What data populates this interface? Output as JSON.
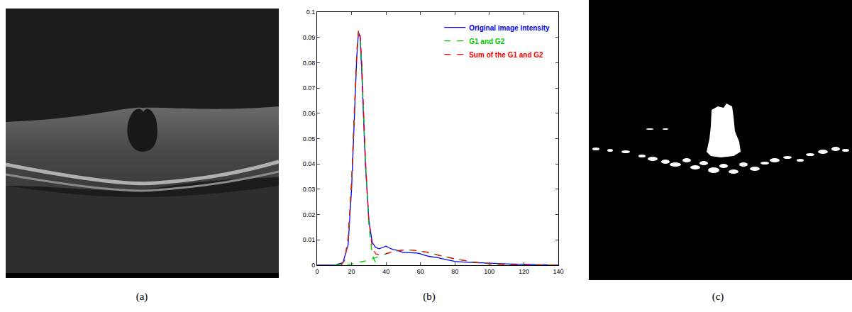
{
  "panel_labels": [
    "(a)",
    "(b)",
    "(c)"
  ],
  "chart_data": {
    "type": "line",
    "xlim": [
      0,
      140
    ],
    "xticks": [
      0,
      20,
      40,
      60,
      80,
      100,
      120,
      140
    ],
    "ylim": [
      0,
      0.1
    ],
    "yticks": [
      0,
      0.01,
      0.02,
      0.03,
      0.04,
      0.05,
      0.06,
      0.07,
      0.08,
      0.09,
      0.1
    ],
    "grid": false,
    "legend": "upper right",
    "series": [
      {
        "name": "Original image intensity",
        "color": "#0000ff",
        "line_style": "solid",
        "x": [
          0,
          10,
          15,
          18,
          20,
          22,
          23,
          24,
          25,
          26,
          27,
          28,
          30,
          32,
          34,
          36,
          38,
          40,
          42,
          44,
          46,
          48,
          50,
          52,
          54,
          56,
          58,
          60,
          62,
          65,
          70,
          75,
          80,
          85,
          90,
          100,
          110,
          120,
          130,
          140
        ],
        "values": [
          0,
          0,
          0.001,
          0.008,
          0.03,
          0.065,
          0.082,
          0.092,
          0.09,
          0.075,
          0.058,
          0.04,
          0.018,
          0.009,
          0.007,
          0.0065,
          0.007,
          0.0075,
          0.0068,
          0.0062,
          0.006,
          0.0055,
          0.005,
          0.005,
          0.005,
          0.005,
          0.0048,
          0.0045,
          0.004,
          0.0035,
          0.003,
          0.0022,
          0.0015,
          0.0012,
          0.001,
          0.0008,
          0.0005,
          0.0004,
          0.0002,
          0
        ]
      },
      {
        "name": "G1 and G2",
        "color": "#00cc00",
        "line_style": "dashed",
        "x": [
          14,
          16,
          18,
          20,
          22,
          23,
          24,
          25,
          26,
          27,
          28,
          30,
          32,
          34,
          36,
          36,
          10,
          20,
          30,
          40,
          45,
          50,
          55,
          60,
          65,
          70,
          80,
          90,
          100,
          110,
          120,
          140
        ],
        "values": [
          0,
          0.002,
          0.01,
          0.032,
          0.066,
          0.083,
          0.092,
          0.09,
          0.078,
          0.06,
          0.042,
          0.016,
          0.004,
          0.001,
          0,
          null,
          0,
          0.0005,
          0.002,
          0.0045,
          0.0055,
          0.006,
          0.006,
          0.0056,
          0.005,
          0.004,
          0.0025,
          0.0013,
          0.0006,
          0.0002,
          0.0001,
          0
        ]
      },
      {
        "name": "Sum of the G1 and G2",
        "color": "#ff0000",
        "line_style": "dashed",
        "x": [
          14,
          16,
          18,
          20,
          22,
          23,
          24,
          25,
          26,
          27,
          28,
          30,
          32,
          34,
          36,
          40,
          45,
          50,
          55,
          60,
          65,
          70,
          80,
          90,
          100,
          110,
          120,
          140
        ],
        "values": [
          0,
          0.002,
          0.011,
          0.033,
          0.067,
          0.084,
          0.093,
          0.091,
          0.079,
          0.061,
          0.043,
          0.018,
          0.007,
          0.0045,
          0.0042,
          0.0045,
          0.0055,
          0.006,
          0.006,
          0.0056,
          0.005,
          0.004,
          0.0025,
          0.0013,
          0.0006,
          0.0002,
          0.0001,
          0
        ]
      }
    ]
  }
}
